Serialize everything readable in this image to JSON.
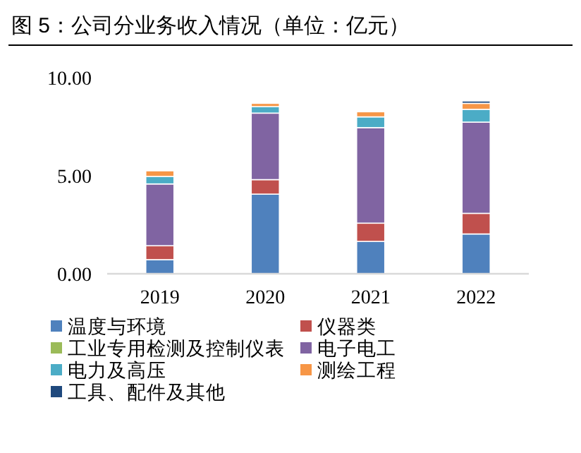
{
  "chart_data": {
    "type": "bar",
    "stacked": true,
    "title": "图 5：公司分业务收入情况（单位：亿元）",
    "categories": [
      "2019",
      "2020",
      "2021",
      "2022"
    ],
    "series": [
      {
        "name": "温度与环境",
        "color": "#4f81bd",
        "values": [
          0.72,
          4.06,
          1.65,
          2.03
        ]
      },
      {
        "name": "仪器类",
        "color": "#c0504d",
        "values": [
          0.71,
          0.74,
          0.93,
          1.05
        ]
      },
      {
        "name": "工业专用检测及控制仪表",
        "color": "#9bbb59",
        "values": [
          0,
          0,
          0,
          0
        ]
      },
      {
        "name": "电子电工",
        "color": "#8064a2",
        "values": [
          3.15,
          3.39,
          4.87,
          4.65
        ]
      },
      {
        "name": "电力及高压",
        "color": "#4bacc6",
        "values": [
          0.38,
          0.33,
          0.55,
          0.65
        ]
      },
      {
        "name": "测绘工程",
        "color": "#f79646",
        "values": [
          0.29,
          0.17,
          0.26,
          0.31
        ]
      },
      {
        "name": "工具、配件及其他",
        "color": "#1f497d",
        "values": [
          0,
          0,
          0,
          0.12
        ]
      }
    ],
    "ylim": [
      0,
      10
    ],
    "yticks": [
      {
        "value": 0,
        "label": "0.00"
      },
      {
        "value": 5,
        "label": "5.00"
      },
      {
        "value": 10,
        "label": "10.00"
      }
    ],
    "legend": "bottom",
    "grid": false
  }
}
